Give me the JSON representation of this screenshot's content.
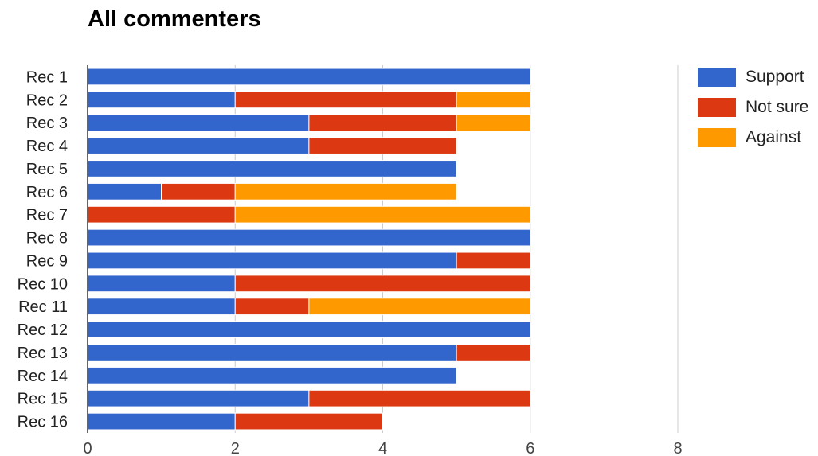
{
  "chart_data": {
    "type": "bar",
    "orientation": "horizontal",
    "stacked": true,
    "title": "All commenters",
    "categories": [
      "Rec 1",
      "Rec 2",
      "Rec 3",
      "Rec 4",
      "Rec 5",
      "Rec 6",
      "Rec 7",
      "Rec 8",
      "Rec 9",
      "Rec 10",
      "Rec 11",
      "Rec 12",
      "Rec 13",
      "Rec 14",
      "Rec 15",
      "Rec 16"
    ],
    "series": [
      {
        "name": "Support",
        "color": "#3366cc",
        "values": [
          6,
          2,
          3,
          3,
          5,
          1,
          0,
          6,
          5,
          2,
          2,
          6,
          5,
          5,
          3,
          2
        ]
      },
      {
        "name": "Not sure",
        "color": "#dc3912",
        "values": [
          0,
          3,
          2,
          2,
          0,
          1,
          2,
          0,
          1,
          4,
          1,
          0,
          1,
          0,
          3,
          2
        ]
      },
      {
        "name": "Against",
        "color": "#ff9900",
        "values": [
          0,
          1,
          1,
          0,
          0,
          3,
          4,
          0,
          0,
          0,
          3,
          0,
          0,
          0,
          0,
          0
        ]
      }
    ],
    "xlim": [
      0,
      8
    ],
    "xticks": [
      "0",
      "2",
      "4",
      "6",
      "8"
    ],
    "grid": true,
    "legend": "right"
  }
}
